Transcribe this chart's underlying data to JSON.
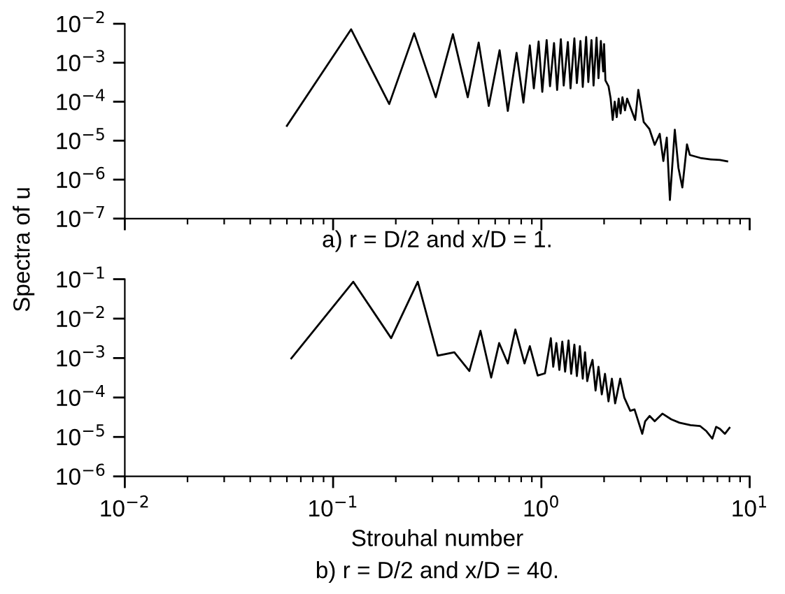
{
  "chart_data": [
    {
      "type": "line",
      "ylabel": "Spectra of u",
      "annotations": [
        "a) r = D/2 and x/D = 1."
      ],
      "log": "xy",
      "tick_labels": "y",
      "grid": false,
      "legend": false,
      "marker": "none",
      "line_style": "solid",
      "xlim": [
        0.01,
        10
      ],
      "xticks": [
        0.01,
        0.1,
        1,
        10
      ],
      "ylim": [
        1e-07,
        0.01
      ],
      "yticks": [
        {
          "value": 1e-07,
          "label": "10$^{−7}$"
        },
        {
          "value": 1e-06,
          "label": "10$^{−6}$"
        },
        {
          "value": 1e-05,
          "label": "10$^{−5}$"
        },
        {
          "value": 0.0001,
          "label": "10$^{−4}$"
        },
        {
          "value": 0.001,
          "label": "10$^{−3}$"
        },
        {
          "value": 0.01,
          "label": "10$^{−2}$"
        }
      ],
      "series": [
        {
          "color": "#000000",
          "x": [
            0.06,
            0.122,
            0.186,
            0.245,
            0.311,
            0.376,
            0.443,
            0.5,
            0.559,
            0.63,
            0.69,
            0.76,
            0.82,
            0.88,
            0.92,
            0.97,
            1.01,
            1.06,
            1.1,
            1.15,
            1.19,
            1.24,
            1.28,
            1.34,
            1.38,
            1.44,
            1.48,
            1.54,
            1.58,
            1.64,
            1.68,
            1.74,
            1.78,
            1.84,
            1.88,
            1.93,
            1.98,
            2.0,
            2.03,
            2.1,
            2.15,
            2.2,
            2.25,
            2.3,
            2.35,
            2.4,
            2.45,
            2.52,
            2.58,
            2.82,
            2.92,
            3.1,
            3.3,
            3.5,
            3.7,
            3.85,
            4.0,
            4.14,
            4.37,
            4.55,
            4.75,
            5.0,
            5.16,
            5.8,
            6.5,
            7.2,
            7.8
          ],
          "values": [
            2.4e-05,
            0.0072,
            8.7e-05,
            0.0057,
            0.00013,
            0.0054,
            0.00013,
            0.0033,
            7.8e-05,
            0.0021,
            5.8e-05,
            0.0018,
            9.5e-05,
            0.0028,
            0.00022,
            0.0035,
            0.00018,
            0.0038,
            0.00025,
            0.0032,
            0.0002,
            0.004,
            0.00026,
            0.0034,
            0.00022,
            0.0042,
            0.0003,
            0.0036,
            0.00024,
            0.0046,
            0.00032,
            0.0038,
            0.00026,
            0.0044,
            0.0004,
            0.0036,
            0.0006,
            0.003,
            0.00035,
            0.00025,
            0.00012,
            3.4e-05,
            0.0001,
            4e-05,
            0.00012,
            5e-05,
            0.00013,
            6e-05,
            0.00012,
            3.4e-05,
            0.0002,
            3e-05,
            2e-05,
            7.8e-06,
            1.5e-05,
            3e-06,
            1.2e-05,
            3e-07,
            1.9e-05,
            2e-06,
            6.3e-07,
            8e-06,
            4.3e-06,
            3.6e-06,
            3.3e-06,
            3.2e-06,
            2.95e-06
          ]
        }
      ]
    },
    {
      "type": "line",
      "xlabel": "Strouhal number",
      "annotations": [
        "b) r = D/2 and x/D = 40."
      ],
      "log": "xy",
      "grid": false,
      "legend": false,
      "marker": "none",
      "line_style": "solid",
      "xlim": [
        0.01,
        10
      ],
      "xticks": [
        {
          "value": 0.01,
          "label": "10$^{−2}$"
        },
        {
          "value": 0.1,
          "label": "10$^{−1}$"
        },
        {
          "value": 1,
          "label": "10$^{0}$"
        },
        {
          "value": 10,
          "label": "10$^{1}$"
        }
      ],
      "ylim": [
        1e-06,
        0.1
      ],
      "yticks": [
        {
          "value": 1e-06,
          "label": "10$^{−6}$"
        },
        {
          "value": 1e-05,
          "label": "10$^{−5}$"
        },
        {
          "value": 0.0001,
          "label": "10$^{−4}$"
        },
        {
          "value": 0.001,
          "label": "10$^{−3}$"
        },
        {
          "value": 0.01,
          "label": "10$^{−2}$"
        },
        {
          "value": 0.1,
          "label": "10$^{−1}$"
        }
      ],
      "series": [
        {
          "color": "#000000",
          "x": [
            0.063,
            0.125,
            0.19,
            0.255,
            0.318,
            0.382,
            0.451,
            0.51,
            0.574,
            0.627,
            0.69,
            0.75,
            0.83,
            0.88,
            0.96,
            1.04,
            1.11,
            1.14,
            1.18,
            1.22,
            1.26,
            1.3,
            1.35,
            1.39,
            1.44,
            1.48,
            1.53,
            1.58,
            1.62,
            1.66,
            1.71,
            1.76,
            1.82,
            1.88,
            1.95,
            2.02,
            2.1,
            2.18,
            2.26,
            2.39,
            2.5,
            2.67,
            2.8,
            3.05,
            3.15,
            3.31,
            3.5,
            3.81,
            4.2,
            4.6,
            5.2,
            5.77,
            6.2,
            6.62,
            6.9,
            7.2,
            7.6,
            8.0
          ],
          "values": [
            0.00098,
            0.086,
            0.0032,
            0.086,
            0.00115,
            0.0014,
            0.00047,
            0.0049,
            0.00032,
            0.0024,
            0.00073,
            0.0053,
            0.00073,
            0.002,
            0.00036,
            0.00041,
            0.0032,
            0.0006,
            0.0024,
            0.0005,
            0.0026,
            0.00045,
            0.0028,
            0.0004,
            0.0022,
            0.00035,
            0.002,
            0.0003,
            0.0014,
            0.00026,
            0.00055,
            0.0009,
            0.00015,
            0.0006,
            0.00012,
            0.0004,
            8e-05,
            0.0003,
            7.1e-05,
            0.0003,
            0.0001,
            4.6e-05,
            5e-05,
            1.2e-05,
            2.5e-05,
            3.4e-05,
            2.5e-05,
            3.9e-05,
            2.8e-05,
            2.3e-05,
            2e-05,
            1.9e-05,
            1.4e-05,
            9.1e-06,
            1.8e-05,
            1.6e-05,
            1.2e-05,
            1.7e-05
          ]
        }
      ]
    }
  ]
}
